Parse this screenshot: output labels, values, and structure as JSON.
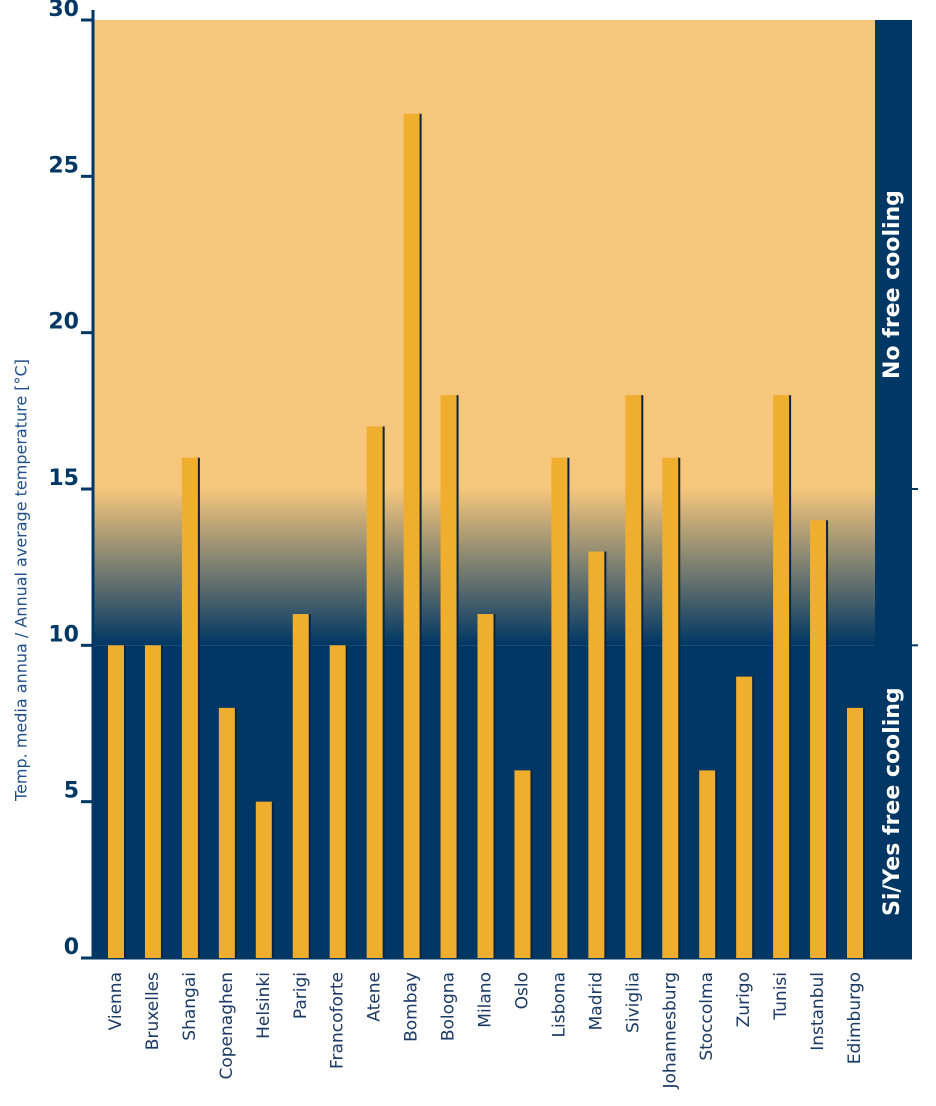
{
  "chart_data": {
    "type": "bar",
    "y_label": "Temp. media annua / Annual average temperature [°C]",
    "categories": [
      "Vienna",
      "Bruxelles",
      "Shangai",
      "Copenaghen",
      "Helsinki",
      "Parigi",
      "Francoforte",
      "Atene",
      "Bombay",
      "Bologna",
      "Milano",
      "Oslo",
      "Lisbona",
      "Madrid",
      "Siviglia",
      "Johannesburg",
      "Stoccolma",
      "Zurigo",
      "Tunisi",
      "Instanbul",
      "Edimburgo"
    ],
    "values": [
      10,
      10,
      16,
      8,
      5,
      11,
      10,
      17,
      27,
      18,
      11,
      6,
      16,
      13,
      18,
      16,
      6,
      9,
      18,
      14,
      8
    ],
    "color": "#f0ae2e",
    "ylim": [
      0,
      30
    ],
    "yticks": [
      0,
      5,
      10,
      15,
      20,
      25,
      30
    ],
    "zones": [
      {
        "label": "Si/Yes free cooling",
        "from": 0,
        "to": 10,
        "color": "#003764"
      },
      {
        "label": "No free cooling",
        "from": 15,
        "to": 30,
        "color": "#f5c67c"
      }
    ]
  }
}
